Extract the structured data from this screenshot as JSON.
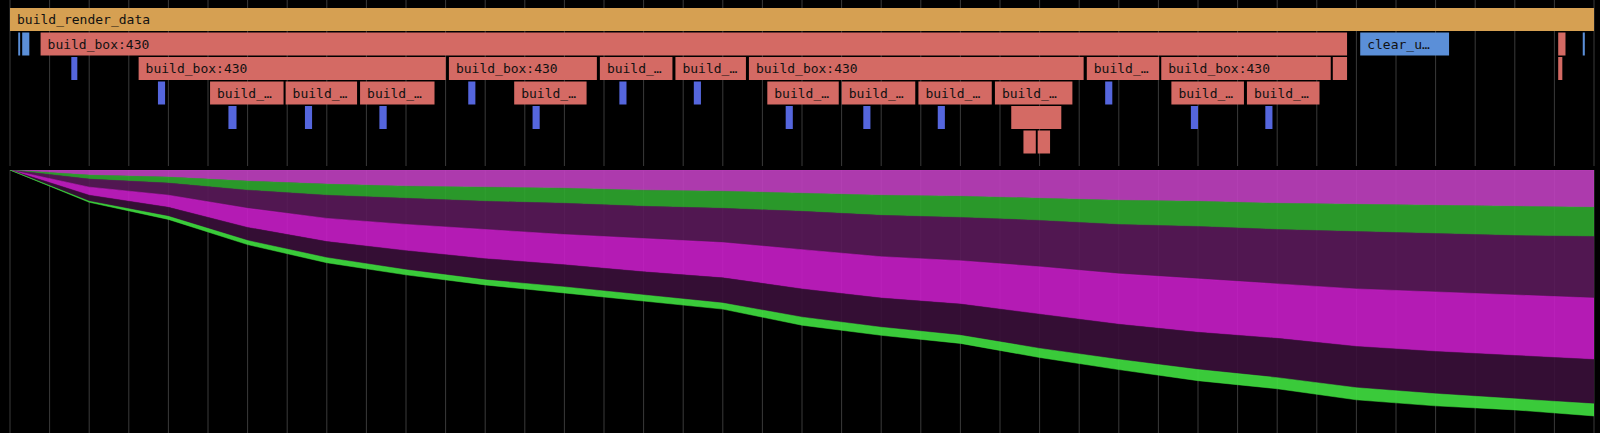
{
  "chart_data": [
    {
      "type": "flame",
      "xlim": [
        0,
        100
      ],
      "grid": true,
      "tick_labels": false,
      "xticks": [
        0,
        2.5,
        5,
        7.5,
        10,
        12.5,
        15,
        17.5,
        20,
        22.5,
        25,
        27.5,
        30,
        32.5,
        35,
        37.5,
        40,
        42.5,
        45,
        47.5,
        50,
        52.5,
        55,
        57.5,
        60,
        62.5,
        65,
        67.5,
        70,
        72.5,
        75,
        77.5,
        80,
        82.5,
        85,
        87.5,
        90,
        92.5,
        95,
        97.5,
        100
      ],
      "zones": [
        {
          "label": "build_render_data",
          "start": 0,
          "end": 100,
          "depth": 0,
          "color": "#d6a052"
        },
        {
          "label": null,
          "start": 0.52,
          "end": 0.64,
          "depth": 1,
          "color": "#5b8fd8"
        },
        {
          "label": null,
          "start": 0.77,
          "end": 1.22,
          "depth": 1,
          "color": "#5b8fd8"
        },
        {
          "label": "build_box:430",
          "start": 1.93,
          "end": 84.41,
          "depth": 1,
          "color": "#d46a64"
        },
        {
          "label": "clear_u…",
          "start": 85.24,
          "end": 90.85,
          "depth": 1,
          "color": "#5b8fd8"
        },
        {
          "label": null,
          "start": 97.74,
          "end": 98.2,
          "depth": 1,
          "color": "#d46a64"
        },
        {
          "label": null,
          "start": 99.29,
          "end": 99.42,
          "depth": 1,
          "color": "#5b8fd8"
        },
        {
          "label": null,
          "start": 3.87,
          "end": 4.25,
          "depth": 2,
          "color": "#5566dd"
        },
        {
          "label": "build_box:430",
          "start": 8.12,
          "end": 27.51,
          "depth": 2,
          "color": "#d46a64"
        },
        {
          "label": "build_box:430",
          "start": 27.71,
          "end": 37.05,
          "depth": 2,
          "color": "#d46a64"
        },
        {
          "label": "build_…",
          "start": 37.24,
          "end": 41.82,
          "depth": 2,
          "color": "#d46a64"
        },
        {
          "label": "build_…",
          "start": 42.01,
          "end": 46.46,
          "depth": 2,
          "color": "#d46a64"
        },
        {
          "label": "build_box:430",
          "start": 46.65,
          "end": 67.78,
          "depth": 2,
          "color": "#d46a64"
        },
        {
          "label": "build_…",
          "start": 67.98,
          "end": 72.55,
          "depth": 2,
          "color": "#d46a64"
        },
        {
          "label": "build_box:430",
          "start": 72.68,
          "end": 83.38,
          "depth": 2,
          "color": "#d46a64"
        },
        {
          "label": null,
          "start": 83.51,
          "end": 84.41,
          "depth": 2,
          "color": "#d46a64"
        },
        {
          "label": null,
          "start": 97.74,
          "end": 98.0,
          "depth": 2,
          "color": "#d46a64"
        },
        {
          "label": null,
          "start": 9.34,
          "end": 9.79,
          "depth": 3,
          "color": "#5566dd"
        },
        {
          "label": "build_…",
          "start": 12.63,
          "end": 17.27,
          "depth": 3,
          "color": "#d46a64"
        },
        {
          "label": "build_…",
          "start": 17.4,
          "end": 21.91,
          "depth": 3,
          "color": "#d46a64"
        },
        {
          "label": "build_…",
          "start": 22.1,
          "end": 26.8,
          "depth": 3,
          "color": "#d46a64"
        },
        {
          "label": null,
          "start": 28.93,
          "end": 29.38,
          "depth": 3,
          "color": "#5566dd"
        },
        {
          "label": "build_…",
          "start": 31.83,
          "end": 36.4,
          "depth": 3,
          "color": "#d46a64"
        },
        {
          "label": null,
          "start": 38.47,
          "end": 38.92,
          "depth": 3,
          "color": "#5566dd"
        },
        {
          "label": null,
          "start": 43.17,
          "end": 43.62,
          "depth": 3,
          "color": "#5566dd"
        },
        {
          "label": "build_…",
          "start": 47.81,
          "end": 52.32,
          "depth": 3,
          "color": "#d46a64"
        },
        {
          "label": "build_…",
          "start": 52.51,
          "end": 57.15,
          "depth": 3,
          "color": "#d46a64"
        },
        {
          "label": "build_…",
          "start": 57.35,
          "end": 61.98,
          "depth": 3,
          "color": "#d46a64"
        },
        {
          "label": "build_…",
          "start": 62.18,
          "end": 67.07,
          "depth": 3,
          "color": "#d46a64"
        },
        {
          "label": null,
          "start": 69.14,
          "end": 69.59,
          "depth": 3,
          "color": "#5566dd"
        },
        {
          "label": "build_…",
          "start": 73.32,
          "end": 77.9,
          "depth": 3,
          "color": "#d46a64"
        },
        {
          "label": "build_…",
          "start": 78.09,
          "end": 82.67,
          "depth": 3,
          "color": "#d46a64"
        },
        {
          "label": null,
          "start": 13.79,
          "end": 14.3,
          "depth": 4,
          "color": "#5566dd"
        },
        {
          "label": null,
          "start": 18.62,
          "end": 19.07,
          "depth": 4,
          "color": "#5566dd"
        },
        {
          "label": null,
          "start": 23.32,
          "end": 23.78,
          "depth": 4,
          "color": "#5566dd"
        },
        {
          "label": null,
          "start": 32.99,
          "end": 33.44,
          "depth": 4,
          "color": "#5566dd"
        },
        {
          "label": null,
          "start": 48.97,
          "end": 49.42,
          "depth": 4,
          "color": "#5566dd"
        },
        {
          "label": null,
          "start": 53.87,
          "end": 54.32,
          "depth": 4,
          "color": "#5566dd"
        },
        {
          "label": null,
          "start": 58.57,
          "end": 59.02,
          "depth": 4,
          "color": "#5566dd"
        },
        {
          "label": null,
          "start": 63.21,
          "end": 66.37,
          "depth": 4,
          "color": "#d46a64"
        },
        {
          "label": null,
          "start": 74.55,
          "end": 75.0,
          "depth": 4,
          "color": "#5566dd"
        },
        {
          "label": null,
          "start": 79.25,
          "end": 79.7,
          "depth": 4,
          "color": "#5566dd"
        },
        {
          "label": null,
          "start": 63.98,
          "end": 64.76,
          "depth": 5,
          "color": "#d46a64"
        },
        {
          "label": null,
          "start": 64.88,
          "end": 65.66,
          "depth": 5,
          "color": "#d46a64"
        }
      ]
    },
    {
      "type": "area",
      "stacked": true,
      "grid": true,
      "tick_labels": false,
      "xlim": [
        0,
        100
      ],
      "ylim": [
        0,
        250
      ],
      "xticks": [
        0,
        2.5,
        5,
        7.5,
        10,
        12.5,
        15,
        17.5,
        20,
        22.5,
        25,
        27.5,
        30,
        32.5,
        35,
        37.5,
        40,
        42.5,
        45,
        47.5,
        50,
        52.5,
        55,
        57.5,
        60,
        62.5,
        65,
        67.5,
        70,
        72.5,
        75,
        77.5,
        80,
        82.5,
        85,
        87.5,
        90,
        92.5,
        95,
        97.5,
        100
      ],
      "x": [
        0,
        5,
        10,
        15,
        20,
        25,
        30,
        35,
        40,
        45,
        50,
        55,
        60,
        65,
        70,
        75,
        80,
        85,
        90,
        95,
        100
      ],
      "series": [
        {
          "color": "#c040c0",
          "values": [
            0,
            5,
            7,
            11,
            14,
            16,
            17,
            18,
            20,
            21,
            23,
            25,
            26,
            28,
            30,
            31,
            33,
            34,
            35,
            36,
            37
          ]
        },
        {
          "color": "#2fa82f",
          "values": [
            0,
            4,
            6,
            9,
            11,
            12,
            14,
            15,
            16,
            17,
            18,
            20,
            21,
            22,
            24,
            25,
            26,
            27,
            28,
            29,
            29
          ]
        },
        {
          "color": "#5a1a5a",
          "values": [
            0,
            8,
            12,
            18,
            23,
            26,
            28,
            31,
            32,
            34,
            38,
            41,
            43,
            46,
            49,
            52,
            54,
            57,
            58,
            59,
            61
          ]
        },
        {
          "color": "#c81ec8",
          "values": [
            0,
            8,
            12,
            19,
            23,
            26,
            29,
            30,
            33,
            35,
            39,
            41,
            43,
            47,
            50,
            53,
            54,
            57,
            59,
            60,
            61
          ]
        },
        {
          "color": "#3a0f3a",
          "values": [
            0,
            6,
            9,
            13,
            16,
            19,
            21,
            22,
            23,
            25,
            28,
            29,
            31,
            34,
            35,
            37,
            39,
            41,
            42,
            43,
            44
          ]
        },
        {
          "color": "#40e040",
          "values": [
            0,
            1,
            3,
            4,
            5,
            5,
            5,
            6,
            6,
            6,
            8,
            8,
            8,
            9,
            10,
            11,
            11,
            12,
            12,
            11,
            12
          ]
        }
      ]
    }
  ]
}
